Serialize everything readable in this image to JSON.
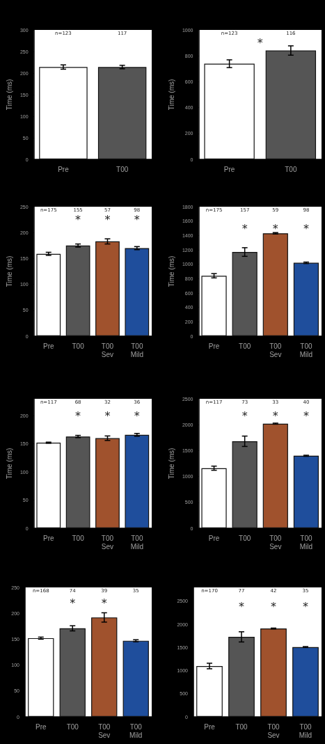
{
  "chart_data": [
    {
      "type": "bar",
      "ylabel": "Time (ms)",
      "categories": [
        "Pre",
        "T00"
      ],
      "ylim": [
        0,
        300
      ],
      "yticks": [
        0,
        50,
        100,
        150,
        200,
        250,
        300
      ],
      "grid": false,
      "series": [
        {
          "colors": [
            "#ffffff",
            "#555555"
          ],
          "values": [
            214,
            214
          ],
          "errors": [
            5,
            4
          ]
        }
      ],
      "annotations": [
        "n=123",
        "117"
      ]
    },
    {
      "type": "bar",
      "ylabel": "Time (ms)",
      "categories": [
        "Pre",
        "T00"
      ],
      "ylim": [
        0,
        1000
      ],
      "yticks": [
        0,
        200,
        400,
        600,
        800,
        1000
      ],
      "grid": false,
      "series": [
        {
          "colors": [
            "#ffffff",
            "#555555"
          ],
          "values": [
            739,
            841
          ],
          "errors": [
            30,
            36
          ]
        }
      ],
      "annotations": [
        "n=123",
        "116",
        "*"
      ]
    },
    {
      "type": "bar",
      "ylabel": "Time (ms)",
      "categories": [
        "Pre",
        "T00",
        "T00\nSev",
        "T00\nMild"
      ],
      "ylim": [
        0,
        250
      ],
      "yticks": [
        0,
        50,
        100,
        150,
        200,
        250
      ],
      "grid": false,
      "series": [
        {
          "colors": [
            "#ffffff",
            "#555555",
            "#a0522d",
            "#1f4e9c"
          ],
          "values": [
            159,
            175,
            183,
            170
          ],
          "errors": [
            3,
            3,
            5,
            3
          ]
        }
      ],
      "annotations": [
        "n=175",
        "155",
        "57",
        "98",
        "*",
        "*",
        "*"
      ]
    },
    {
      "type": "bar",
      "ylabel": "Time (ms)",
      "categories": [
        "Pre",
        "T00",
        "T00\nSev",
        "T00\nMild"
      ],
      "ylim": [
        0,
        1800
      ],
      "yticks": [
        0,
        200,
        400,
        600,
        800,
        1000,
        1200,
        1400,
        1600,
        1800
      ],
      "grid": false,
      "series": [
        {
          "colors": [
            "#ffffff",
            "#555555",
            "#a0522d",
            "#1f4e9c"
          ],
          "values": [
            840,
            1170,
            1430,
            1020
          ],
          "errors": [
            30,
            60,
            10,
            10
          ]
        }
      ],
      "annotations": [
        "n=175",
        "157",
        "59",
        "98",
        "*",
        "*",
        "*"
      ]
    },
    {
      "type": "bar",
      "ylabel": "Time (ms)",
      "categories": [
        "Pre",
        "T00",
        "T00\nSev",
        "T00\nMild"
      ],
      "ylim": [
        0,
        230
      ],
      "yticks": [
        0,
        50,
        100,
        150,
        200
      ],
      "grid": false,
      "series": [
        {
          "colors": [
            "#ffffff",
            "#555555",
            "#a0522d",
            "#1f4e9c"
          ],
          "values": [
            152,
            163,
            160,
            166
          ],
          "errors": [
            1,
            2,
            4,
            2.5
          ]
        }
      ],
      "annotations": [
        "n=117",
        "68",
        "32",
        "36",
        "*",
        "*",
        "*"
      ]
    },
    {
      "type": "bar",
      "ylabel": "Time (ms)",
      "categories": [
        "Pre",
        "T00",
        "T00\nSev",
        "T00\nMild"
      ],
      "ylim": [
        0,
        2500
      ],
      "yticks": [
        0,
        500,
        1000,
        1500,
        2000,
        2500
      ],
      "grid": false,
      "series": [
        {
          "colors": [
            "#ffffff",
            "#555555",
            "#a0522d",
            "#1f4e9c"
          ],
          "values": [
            1160,
            1680,
            2020,
            1400
          ],
          "errors": [
            40,
            100,
            10,
            10
          ]
        }
      ],
      "annotations": [
        "n=117",
        "73",
        "33",
        "40",
        "*",
        "*",
        "*"
      ]
    },
    {
      "type": "bar",
      "categories": [
        "Pre",
        "T00",
        "T00\nSev",
        "T00\nMild"
      ],
      "ylim": [
        0,
        250
      ],
      "yticks": [
        0,
        50,
        100,
        150,
        200,
        250
      ],
      "grid": false,
      "series": [
        {
          "colors": [
            "#ffffff",
            "#555555",
            "#a0522d",
            "#1f4e9c"
          ],
          "values": [
            152,
            171,
            192,
            147
          ],
          "errors": [
            2,
            5,
            9,
            2
          ]
        }
      ],
      "annotations": [
        "n=168",
        "74",
        "39",
        "35",
        "*",
        "*"
      ]
    },
    {
      "type": "bar",
      "categories": [
        "Pre",
        "T00",
        "T00\nSev",
        "T00\nMild"
      ],
      "ylim": [
        0,
        2800
      ],
      "yticks": [
        0,
        500,
        1000,
        1500,
        2000,
        2500
      ],
      "grid": false,
      "series": [
        {
          "colors": [
            "#ffffff",
            "#555555",
            "#a0522d",
            "#1f4e9c"
          ],
          "values": [
            1100,
            1730,
            1910,
            1510
          ],
          "errors": [
            60,
            110,
            10,
            10
          ]
        }
      ],
      "annotations": [
        "n=170",
        "77",
        "42",
        "35",
        "*",
        "*",
        "*"
      ]
    }
  ]
}
